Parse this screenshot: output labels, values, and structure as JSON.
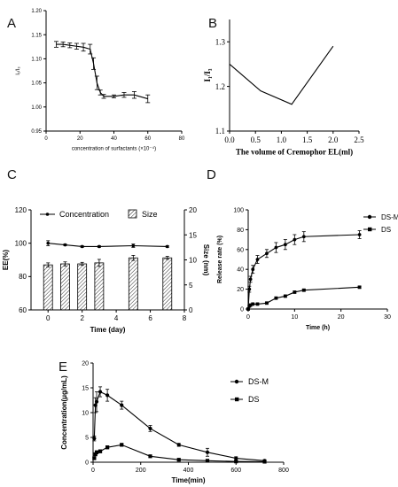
{
  "figure": {
    "panels": [
      {
        "id": "A",
        "label": "A",
        "chart_data": {
          "type": "line",
          "xlabel": "concentration of surfactants (×10⁻⁴)",
          "ylabel": "I₁/I₃",
          "xlim": [
            0,
            80
          ],
          "ylim": [
            0.95,
            1.2
          ],
          "xticks": [
            "0",
            "20",
            "40",
            "60",
            "80"
          ],
          "yticks": [
            "0.95",
            "1.00",
            "1.05",
            "1.10",
            "1.15",
            "1.20"
          ],
          "series": [
            {
              "x": [
                6,
                10,
                14,
                18,
                22,
                26,
                28,
                30,
                32,
                34,
                40,
                46,
                52,
                60
              ],
              "y": [
                1.13,
                1.13,
                1.128,
                1.126,
                1.124,
                1.12,
                1.09,
                1.05,
                1.03,
                1.022,
                1.022,
                1.025,
                1.025,
                1.017
              ],
              "err": [
                0.006,
                0.005,
                0.005,
                0.006,
                0.008,
                0.01,
                0.012,
                0.014,
                0.005,
                0.004,
                0.003,
                0.005,
                0.007,
                0.008
              ]
            }
          ]
        }
      },
      {
        "id": "B",
        "label": "B",
        "chart_data": {
          "type": "line",
          "xlabel": "The volume of Cremophor EL(ml)",
          "ylabel": "I₁/I₃",
          "xlim": [
            0.0,
            2.5
          ],
          "ylim": [
            1.1,
            1.35
          ],
          "xticks": [
            "0.0",
            "0.5",
            "1.0",
            "1.5",
            "2.0",
            "2.5"
          ],
          "yticks": [
            "1.1",
            "1.2",
            "1.3"
          ],
          "series": [
            {
              "x": [
                0.0,
                0.6,
                1.2,
                2.0
              ],
              "y": [
                1.25,
                1.19,
                1.16,
                1.29
              ]
            }
          ]
        }
      },
      {
        "id": "C",
        "label": "C",
        "chart_data": {
          "type": "bar+line",
          "xlabel": "Time (day)",
          "ylabel": "EE(%)",
          "y2label": "Size (nm)",
          "xlim": [
            -1,
            8
          ],
          "ylim": [
            60,
            120
          ],
          "y2lim": [
            0,
            20
          ],
          "xticks": [
            "0",
            "2",
            "4",
            "6",
            "8"
          ],
          "yticks": [
            "60",
            "80",
            "100",
            "120"
          ],
          "y2ticks": [
            "0",
            "5",
            "10",
            "15",
            "20"
          ],
          "legend": [
            "Concentration",
            "Size"
          ],
          "series": [
            {
              "name": "Concentration",
              "x": [
                0,
                1,
                2,
                3,
                5,
                7
              ],
              "y": [
                100,
                99,
                98,
                98,
                98.5,
                98
              ],
              "err": [
                1.5,
                0.5,
                0.5,
                0.5,
                1,
                0.5
              ]
            },
            {
              "name": "Size",
              "x": [
                0,
                1,
                2,
                3,
                5,
                7
              ],
              "y": [
                9,
                9.2,
                9.2,
                9.4,
                10.4,
                10.4
              ],
              "err": [
                0.4,
                0.4,
                0.3,
                0.7,
                0.5,
                0.3
              ]
            }
          ]
        }
      },
      {
        "id": "D",
        "label": "D",
        "chart_data": {
          "type": "line",
          "xlabel": "Time (h)",
          "ylabel": "Release rate (%)",
          "xlim": [
            0,
            30
          ],
          "ylim": [
            0,
            100
          ],
          "xticks": [
            "0",
            "10",
            "20",
            "30"
          ],
          "yticks": [
            "0",
            "20",
            "40",
            "60",
            "80",
            "100"
          ],
          "legend": [
            "DS-M",
            "DS"
          ],
          "series": [
            {
              "name": "DS-M",
              "marker": "circle",
              "x": [
                0,
                0.25,
                0.5,
                1,
                2,
                4,
                6,
                8,
                10,
                12,
                24
              ],
              "y": [
                0,
                20,
                30,
                40,
                50,
                56,
                62,
                65,
                70,
                73,
                75
              ],
              "err": [
                0,
                3,
                3,
                4,
                4,
                4,
                5,
                5,
                5,
                5,
                4
              ]
            },
            {
              "name": "DS",
              "marker": "square",
              "x": [
                0,
                0.25,
                0.5,
                1,
                2,
                4,
                6,
                8,
                10,
                12,
                24
              ],
              "y": [
                0,
                3,
                4,
                5,
                5,
                6,
                11,
                13,
                17,
                19,
                22
              ],
              "err": [
                0,
                0.5,
                0.5,
                0.5,
                0.5,
                0.5,
                1,
                1,
                1,
                1,
                1
              ]
            }
          ]
        }
      },
      {
        "id": "E",
        "label": "E",
        "chart_data": {
          "type": "line",
          "xlabel": "Time(min)",
          "ylabel": "Concentration(μg/mL)",
          "xlim": [
            0,
            800
          ],
          "ylim": [
            0,
            20
          ],
          "xticks": [
            "0",
            "200",
            "400",
            "600",
            "800"
          ],
          "yticks": [
            "0",
            "5",
            "10",
            "15",
            "20"
          ],
          "legend": [
            "DS-M",
            "DS"
          ],
          "series": [
            {
              "name": "DS-M",
              "marker": "circle",
              "x": [
                5,
                10,
                15,
                30,
                60,
                120,
                240,
                360,
                480,
                600,
                720
              ],
              "y": [
                4.8,
                11.5,
                12.2,
                14.2,
                13.5,
                11.5,
                6.8,
                3.5,
                2.0,
                0.8,
                0.3
              ],
              "err": [
                0.5,
                1.5,
                2.0,
                1.0,
                1.2,
                0.8,
                0.6,
                0.3,
                0.8,
                0.3,
                0.2
              ]
            },
            {
              "name": "DS",
              "marker": "square",
              "x": [
                5,
                10,
                15,
                30,
                60,
                120,
                240,
                360,
                480,
                600,
                720
              ],
              "y": [
                0.8,
                1.6,
                2.0,
                2.2,
                3.0,
                3.5,
                1.2,
                0.5,
                0.3,
                0.15,
                0.1
              ],
              "err": [
                0.2,
                0.3,
                0.3,
                0.3,
                0.3,
                0.3,
                0.2,
                0.1,
                0.1,
                0.05,
                0.05
              ]
            }
          ]
        }
      }
    ]
  }
}
